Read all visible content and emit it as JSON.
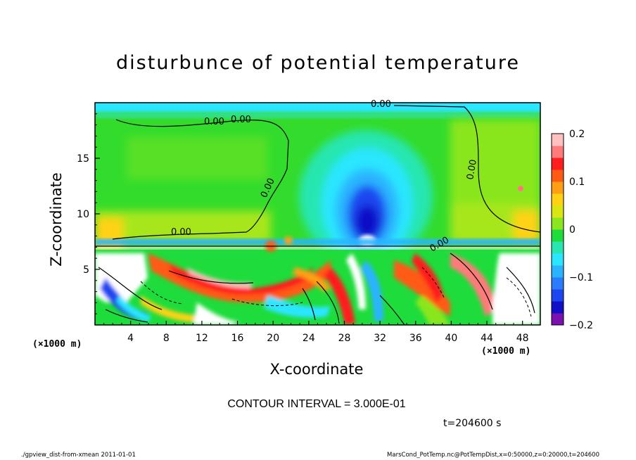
{
  "chart_data": {
    "type": "heatmap",
    "title": "disturbunce of potential temperature",
    "xlabel": "X-coordinate",
    "ylabel": "Z-coordinate",
    "x_unit": "(×1000 m)",
    "y_unit": "(×1000 m)",
    "xlim": [
      0,
      50
    ],
    "ylim": [
      0,
      20
    ],
    "x_ticks": [
      4,
      8,
      12,
      16,
      20,
      24,
      28,
      32,
      36,
      40,
      44,
      48
    ],
    "y_ticks": [
      5,
      10,
      15
    ],
    "colorbar": {
      "range": [
        -0.2,
        0.2
      ],
      "ticks": [
        "0.2",
        "0.1",
        "0",
        "−0.1",
        "−0.2"
      ],
      "tick_values": [
        0.2,
        0.1,
        0,
        -0.1,
        -0.2
      ],
      "colors": [
        "#7a11b0",
        "#1010c8",
        "#1e46f0",
        "#2a7cff",
        "#2ab4ff",
        "#2ae6ff",
        "#28e6b0",
        "#1edc3c",
        "#8ae61e",
        "#d8e614",
        "#ffd214",
        "#ffa014",
        "#ff5a14",
        "#ff1e1e",
        "#ff7a7a",
        "#ffc0c0"
      ]
    },
    "contour_labels": [
      "0.00",
      "0.00",
      "0.00",
      "0.00",
      "0.00",
      "0.00",
      "0.00"
    ],
    "contour_interval": "CONTOUR INTERVAL = 3.000E-01",
    "time": "t=204600 s",
    "regions": {
      "background_upper": 0.03,
      "upper_left_band": 0.06,
      "upper_right_band": 0.07,
      "center_low_core": -0.2,
      "center_cyan_column": -0.08,
      "boundary_top_z": 6.9,
      "lower_warm_plume": 0.15,
      "lower_left_cold": -0.15
    }
  },
  "footer": {
    "left": "./gpview_dist-from-xmean  2011-01-01",
    "right": "MarsCond_PotTemp.nc@PotTempDist,x=0:50000,z=0:20000,t=204600"
  }
}
